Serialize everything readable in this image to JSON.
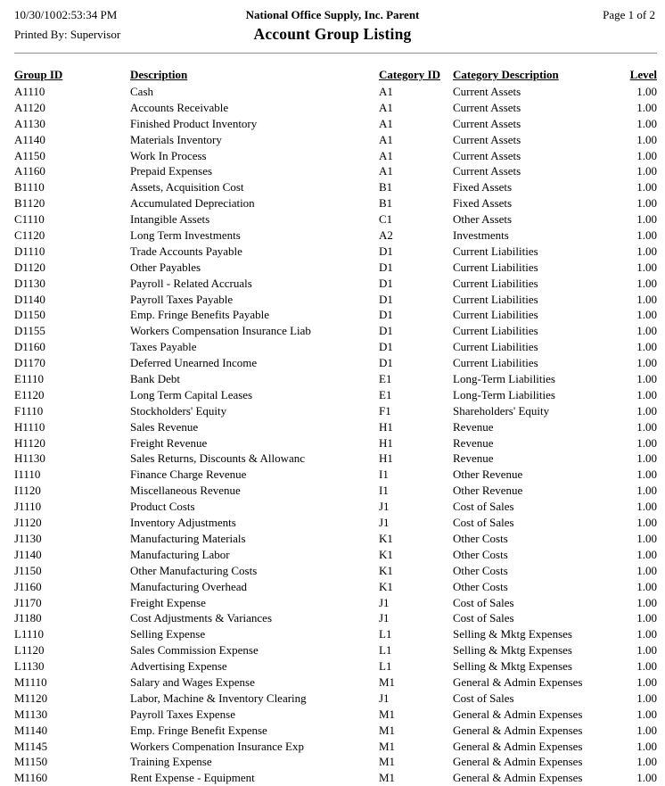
{
  "header": {
    "date": "10/30/10",
    "time": "02:53:34 PM",
    "company": "National Office Supply, Inc. Parent",
    "page": "Page 1 of 2",
    "printed_by": "Printed By: Supervisor",
    "report_title": "Account Group Listing"
  },
  "colors": {
    "background": "#ffffff",
    "text": "#000000",
    "divider": "#8c8c8c"
  },
  "table": {
    "columns": [
      "Group ID",
      "Description",
      "Category ID",
      "Category Description",
      "Level"
    ],
    "rows": [
      [
        "A1110",
        "Cash",
        "A1",
        "Current Assets",
        "1.00"
      ],
      [
        "A1120",
        "Accounts Receivable",
        "A1",
        "Current Assets",
        "1.00"
      ],
      [
        "A1130",
        "Finished Product Inventory",
        "A1",
        "Current Assets",
        "1.00"
      ],
      [
        "A1140",
        "Materials Inventory",
        "A1",
        "Current Assets",
        "1.00"
      ],
      [
        "A1150",
        "Work In Process",
        "A1",
        "Current Assets",
        "1.00"
      ],
      [
        "A1160",
        "Prepaid Expenses",
        "A1",
        "Current Assets",
        "1.00"
      ],
      [
        "B1110",
        "Assets, Acquisition Cost",
        "B1",
        "Fixed Assets",
        "1.00"
      ],
      [
        "B1120",
        "Accumulated Depreciation",
        "B1",
        "Fixed Assets",
        "1.00"
      ],
      [
        "C1110",
        "Intangible Assets",
        "C1",
        "Other Assets",
        "1.00"
      ],
      [
        "C1120",
        "Long Term Investments",
        "A2",
        "Investments",
        "1.00"
      ],
      [
        "D1110",
        "Trade Accounts Payable",
        "D1",
        "Current Liabilities",
        "1.00"
      ],
      [
        "D1120",
        "Other Payables",
        "D1",
        "Current Liabilities",
        "1.00"
      ],
      [
        "D1130",
        "Payroll - Related Accruals",
        "D1",
        "Current Liabilities",
        "1.00"
      ],
      [
        "D1140",
        "Payroll Taxes Payable",
        "D1",
        "Current Liabilities",
        "1.00"
      ],
      [
        "D1150",
        "Emp. Fringe Benefits Payable",
        "D1",
        "Current Liabilities",
        "1.00"
      ],
      [
        "D1155",
        "Workers Compensation Insurance Liab",
        "D1",
        "Current Liabilities",
        "1.00"
      ],
      [
        "D1160",
        "Taxes Payable",
        "D1",
        "Current Liabilities",
        "1.00"
      ],
      [
        "D1170",
        "Deferred Unearned Income",
        "D1",
        "Current Liabilities",
        "1.00"
      ],
      [
        "E1110",
        "Bank Debt",
        "E1",
        "Long-Term Liabilities",
        "1.00"
      ],
      [
        "E1120",
        "Long Term Capital Leases",
        "E1",
        "Long-Term Liabilities",
        "1.00"
      ],
      [
        "F1110",
        "Stockholders' Equity",
        "F1",
        "Shareholders' Equity",
        "1.00"
      ],
      [
        "H1110",
        "Sales Revenue",
        "H1",
        "Revenue",
        "1.00"
      ],
      [
        "H1120",
        "Freight Revenue",
        "H1",
        "Revenue",
        "1.00"
      ],
      [
        "H1130",
        "Sales Returns, Discounts & Allowanc",
        "H1",
        "Revenue",
        "1.00"
      ],
      [
        "I1110",
        "Finance Charge Revenue",
        "I1",
        "Other Revenue",
        "1.00"
      ],
      [
        "I1120",
        "Miscellaneous Revenue",
        "I1",
        "Other Revenue",
        "1.00"
      ],
      [
        "J1110",
        "Product Costs",
        "J1",
        "Cost of Sales",
        "1.00"
      ],
      [
        "J1120",
        "Inventory Adjustments",
        "J1",
        "Cost of Sales",
        "1.00"
      ],
      [
        "J1130",
        "Manufacturing Materials",
        "K1",
        "Other Costs",
        "1.00"
      ],
      [
        "J1140",
        "Manufacturing Labor",
        "K1",
        "Other Costs",
        "1.00"
      ],
      [
        "J1150",
        "Other Manufacturing Costs",
        "K1",
        "Other Costs",
        "1.00"
      ],
      [
        "J1160",
        "Manufacturing Overhead",
        "K1",
        "Other Costs",
        "1.00"
      ],
      [
        "J1170",
        "Freight Expense",
        "J1",
        "Cost of Sales",
        "1.00"
      ],
      [
        "J1180",
        "Cost Adjustments & Variances",
        "J1",
        "Cost of Sales",
        "1.00"
      ],
      [
        "L1110",
        "Selling Expense",
        "L1",
        "Selling & Mktg Expenses",
        "1.00"
      ],
      [
        "L1120",
        "Sales Commission Expense",
        "L1",
        "Selling & Mktg Expenses",
        "1.00"
      ],
      [
        "L1130",
        "Advertising Expense",
        "L1",
        "Selling & Mktg Expenses",
        "1.00"
      ],
      [
        "M1110",
        "Salary and Wages Expense",
        "M1",
        "General & Admin Expenses",
        "1.00"
      ],
      [
        "M1120",
        "Labor, Machine & Inventory Clearing",
        "J1",
        "Cost of Sales",
        "1.00"
      ],
      [
        "M1130",
        "Payroll Taxes Expense",
        "M1",
        "General & Admin Expenses",
        "1.00"
      ],
      [
        "M1140",
        "Emp. Fringe Benefit Expense",
        "M1",
        "General & Admin Expenses",
        "1.00"
      ],
      [
        "M1145",
        "Workers Compenation Insurance Exp",
        "M1",
        "General & Admin Expenses",
        "1.00"
      ],
      [
        "M1150",
        "Training Expense",
        "M1",
        "General & Admin Expenses",
        "1.00"
      ],
      [
        "M1160",
        "Rent Expense - Equipment",
        "M1",
        "General & Admin Expenses",
        "1.00"
      ]
    ]
  }
}
